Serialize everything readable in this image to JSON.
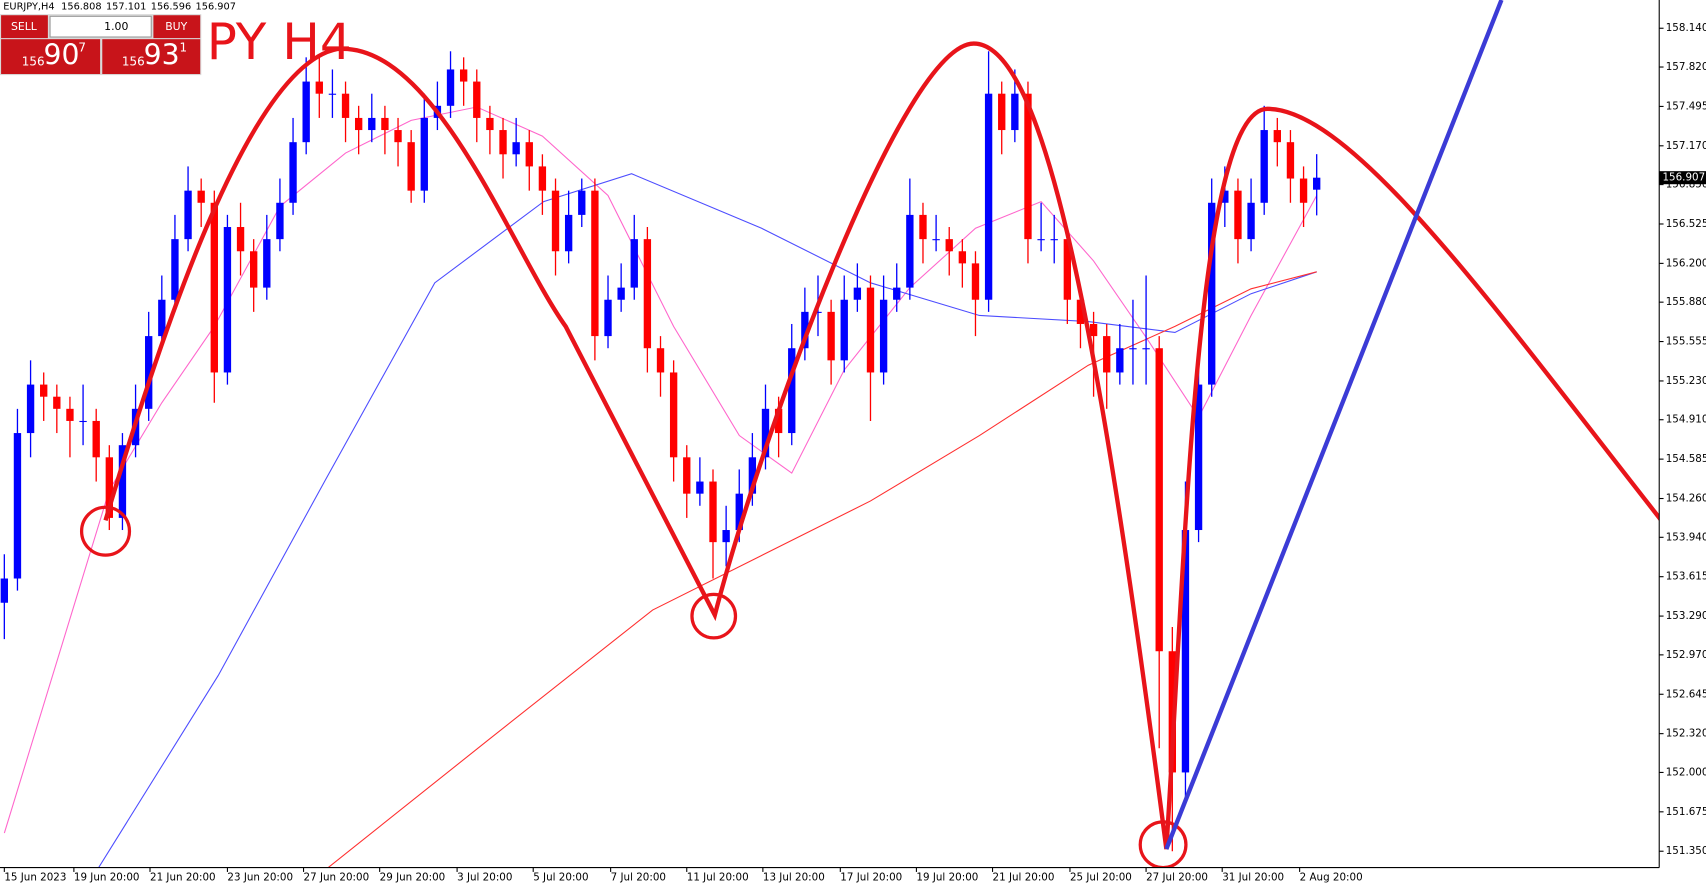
{
  "chart_data": {
    "type": "candlestick",
    "title": "EURJPY,H4",
    "header_values": [
      156.808,
      157.101,
      156.596,
      156.907
    ],
    "overlay_text": "PY H4",
    "trade_panel": {
      "sell": "SELL",
      "buy": "BUY",
      "lot": "1.00",
      "bid": [
        "156",
        "90",
        "7"
      ],
      "ask": [
        "156",
        "93",
        "1"
      ]
    },
    "up_color": "#0000ff",
    "down_color": "#ff0000",
    "xlim": [
      -0.33,
      126.1
    ],
    "ylim": [
      151.215,
      158.373
    ],
    "current_price": 156.907,
    "xticks": [
      {
        "value": 0,
        "label": "15 Jun 2023"
      },
      {
        "value": 5.3,
        "label": "19 Jun 20:00"
      },
      {
        "value": 11.1,
        "label": "21 Jun 20:00"
      },
      {
        "value": 17.0,
        "label": "23 Jun 20:00"
      },
      {
        "value": 22.8,
        "label": "27 Jun 20:00"
      },
      {
        "value": 28.6,
        "label": "29 Jun 20:00"
      },
      {
        "value": 34.5,
        "label": "3 Jul 20:00"
      },
      {
        "value": 40.3,
        "label": "5 Jul 20:00"
      },
      {
        "value": 46.2,
        "label": "7 Jul 20:00"
      },
      {
        "value": 52.0,
        "label": "11 Jul 20:00"
      },
      {
        "value": 57.8,
        "label": "13 Jul 20:00"
      },
      {
        "value": 63.7,
        "label": "17 Jul 20:00"
      },
      {
        "value": 69.5,
        "label": "19 Jul 20:00"
      },
      {
        "value": 75.3,
        "label": "21 Jul 20:00"
      },
      {
        "value": 81.2,
        "label": "25 Jul 20:00"
      },
      {
        "value": 87.0,
        "label": "27 Jul 20:00"
      },
      {
        "value": 92.8,
        "label": "31 Jul 20:00"
      },
      {
        "value": 98.7,
        "label": "2 Aug 20:00"
      }
    ],
    "yticks": [
      {
        "value": 158.14,
        "label": "158.140"
      },
      {
        "value": 157.82,
        "label": "157.820"
      },
      157.495,
      {
        "value": 157.17,
        "label": "157.170"
      },
      {
        "value": 156.85,
        "label": "156.850"
      },
      156.525,
      {
        "value": 156.2,
        "label": "156.200"
      },
      {
        "value": 155.88,
        "label": "155.880"
      },
      155.555,
      {
        "value": 155.23,
        "label": "155.230"
      },
      {
        "value": 154.91,
        "label": "154.910"
      },
      154.585,
      {
        "value": 154.26,
        "label": "154.260"
      },
      {
        "value": 153.94,
        "label": "153.940"
      },
      153.615,
      {
        "value": 153.29,
        "label": "153.290"
      },
      {
        "value": 152.97,
        "label": "152.970"
      },
      152.645,
      {
        "value": 152.32,
        "label": "152.320"
      },
      {
        "value": 152.0,
        "label": "152.000"
      },
      151.675,
      {
        "value": 151.35,
        "label": "151.350"
      }
    ],
    "ohlc": [
      [
        153.4,
        153.8,
        153.1,
        153.6
      ],
      [
        153.6,
        155.0,
        153.5,
        154.8
      ],
      [
        154.8,
        155.4,
        154.6,
        155.2
      ],
      [
        155.2,
        155.3,
        154.9,
        155.1
      ],
      [
        155.1,
        155.2,
        154.8,
        155.0
      ],
      [
        155.0,
        155.1,
        154.6,
        154.9
      ],
      [
        154.9,
        155.2,
        154.7,
        154.9
      ],
      [
        154.9,
        155.0,
        154.4,
        154.6
      ],
      [
        154.6,
        154.7,
        154.0,
        154.1
      ],
      [
        154.1,
        154.8,
        154.0,
        154.7
      ],
      [
        154.7,
        155.2,
        154.6,
        155.0
      ],
      [
        155.0,
        155.8,
        154.9,
        155.6
      ],
      [
        155.6,
        156.1,
        155.5,
        155.9
      ],
      [
        155.9,
        156.6,
        155.8,
        156.4
      ],
      [
        156.4,
        157.0,
        156.3,
        156.8
      ],
      [
        156.8,
        156.9,
        156.5,
        156.7
      ],
      [
        156.7,
        156.8,
        155.05,
        155.3
      ],
      [
        155.3,
        156.6,
        155.2,
        156.5
      ],
      [
        156.5,
        156.7,
        156.1,
        156.3
      ],
      [
        156.3,
        156.4,
        155.8,
        156.0
      ],
      [
        156.0,
        156.6,
        155.9,
        156.4
      ],
      [
        156.4,
        156.9,
        156.3,
        156.7
      ],
      [
        156.7,
        157.4,
        156.6,
        157.2
      ],
      [
        157.2,
        157.9,
        157.1,
        157.7
      ],
      [
        157.7,
        157.9,
        157.4,
        157.6
      ],
      [
        157.6,
        157.8,
        157.4,
        157.6
      ],
      [
        157.6,
        157.7,
        157.2,
        157.4
      ],
      [
        157.4,
        157.5,
        157.1,
        157.3
      ],
      [
        157.3,
        157.6,
        157.2,
        157.4
      ],
      [
        157.4,
        157.5,
        157.1,
        157.3
      ],
      [
        157.3,
        157.4,
        157.0,
        157.2
      ],
      [
        157.2,
        157.3,
        156.7,
        156.8
      ],
      [
        156.8,
        157.6,
        156.7,
        157.4
      ],
      [
        157.4,
        157.7,
        157.3,
        157.5
      ],
      [
        157.5,
        157.95,
        157.4,
        157.8
      ],
      [
        157.8,
        157.9,
        157.5,
        157.7
      ],
      [
        157.7,
        157.8,
        157.2,
        157.4
      ],
      [
        157.4,
        157.5,
        157.1,
        157.3
      ],
      [
        157.3,
        157.4,
        156.9,
        157.1
      ],
      [
        157.1,
        157.4,
        157.0,
        157.2
      ],
      [
        157.2,
        157.3,
        156.8,
        157.0
      ],
      [
        157.0,
        157.1,
        156.6,
        156.8
      ],
      [
        156.8,
        156.9,
        156.1,
        156.3
      ],
      [
        156.3,
        156.8,
        156.2,
        156.6
      ],
      [
        156.6,
        156.9,
        156.5,
        156.8
      ],
      [
        156.8,
        156.9,
        155.4,
        155.6
      ],
      [
        155.6,
        156.1,
        155.5,
        155.9
      ],
      [
        155.9,
        156.2,
        155.8,
        156.0
      ],
      [
        156.0,
        156.6,
        155.9,
        156.4
      ],
      [
        156.4,
        156.5,
        155.3,
        155.5
      ],
      [
        155.5,
        155.6,
        155.1,
        155.3
      ],
      [
        155.3,
        155.4,
        154.4,
        154.6
      ],
      [
        154.6,
        154.7,
        154.1,
        154.3
      ],
      [
        154.3,
        154.6,
        154.2,
        154.4
      ],
      [
        154.4,
        154.5,
        153.6,
        153.9
      ],
      [
        153.9,
        154.2,
        153.7,
        154.0
      ],
      [
        154.0,
        154.5,
        153.9,
        154.3
      ],
      [
        154.3,
        154.8,
        154.2,
        154.6
      ],
      [
        154.6,
        155.2,
        154.5,
        155.0
      ],
      [
        155.0,
        155.1,
        154.6,
        154.8
      ],
      [
        154.8,
        155.7,
        154.7,
        155.5
      ],
      [
        155.5,
        156.0,
        155.4,
        155.8
      ],
      [
        155.8,
        156.1,
        155.6,
        155.8
      ],
      [
        155.8,
        155.9,
        155.2,
        155.4
      ],
      [
        155.4,
        156.1,
        155.3,
        155.9
      ],
      [
        155.9,
        156.2,
        155.8,
        156.0
      ],
      [
        156.0,
        156.1,
        154.9,
        155.3
      ],
      [
        155.3,
        156.1,
        155.2,
        155.9
      ],
      [
        155.9,
        156.2,
        155.8,
        156.0
      ],
      [
        156.0,
        156.9,
        155.9,
        156.6
      ],
      [
        156.6,
        156.7,
        156.2,
        156.4
      ],
      [
        156.4,
        156.6,
        156.3,
        156.4
      ],
      [
        156.4,
        156.5,
        156.1,
        156.3
      ],
      [
        156.3,
        156.4,
        156.0,
        156.2
      ],
      [
        156.2,
        156.3,
        155.6,
        155.9
      ],
      [
        155.9,
        157.95,
        155.8,
        157.6
      ],
      [
        157.6,
        157.7,
        157.1,
        157.3
      ],
      [
        157.3,
        157.8,
        157.2,
        157.6
      ],
      [
        157.6,
        157.7,
        156.2,
        156.4
      ],
      [
        156.4,
        156.7,
        156.3,
        156.4
      ],
      [
        156.4,
        156.6,
        156.2,
        156.4
      ],
      [
        156.4,
        156.5,
        155.7,
        155.9
      ],
      [
        155.9,
        156.0,
        155.5,
        155.7
      ],
      [
        155.7,
        155.8,
        155.1,
        155.6
      ],
      [
        155.6,
        155.7,
        155.0,
        155.3
      ],
      [
        155.3,
        155.7,
        155.2,
        155.5
      ],
      [
        155.5,
        155.9,
        155.2,
        155.5
      ],
      [
        155.5,
        156.1,
        155.2,
        155.5
      ],
      [
        155.5,
        155.6,
        152.2,
        153.0
      ],
      [
        153.0,
        153.2,
        151.35,
        152.0
      ],
      [
        152.0,
        154.4,
        151.8,
        154.0
      ],
      [
        154.0,
        155.4,
        153.9,
        155.2
      ],
      [
        155.2,
        156.9,
        155.1,
        156.7
      ],
      [
        156.7,
        157.0,
        156.5,
        156.8
      ],
      [
        156.8,
        156.9,
        156.2,
        156.4
      ],
      [
        156.4,
        156.9,
        156.3,
        156.7
      ],
      [
        156.7,
        157.5,
        156.6,
        157.3
      ],
      [
        157.3,
        157.4,
        157.0,
        157.2
      ],
      [
        157.2,
        157.3,
        156.7,
        156.9
      ],
      [
        156.9,
        157.0,
        156.5,
        156.7
      ],
      [
        156.808,
        157.101,
        156.596,
        156.907
      ]
    ],
    "lines": [
      {
        "color": "#ff66cc",
        "x": [
          0,
          8,
          12,
          16,
          21,
          26,
          31,
          36,
          41,
          46,
          51,
          56,
          60,
          64,
          69,
          74,
          79,
          83,
          87,
          91,
          95,
          100
        ],
        "values": [
          151.5,
          154.33,
          155.05,
          155.68,
          156.67,
          157.11,
          157.38,
          157.49,
          157.25,
          156.76,
          155.68,
          154.78,
          154.47,
          155.32,
          156.0,
          156.49,
          156.71,
          156.22,
          155.59,
          154.93,
          155.77,
          156.76
        ]
      },
      {
        "color": "#4d4dff",
        "x": [
          7.1,
          16.3,
          24.5,
          32.8,
          41.1,
          47.8,
          57.7,
          66.0,
          74.3,
          82.6,
          89.2,
          95.0,
          100
        ],
        "values": [
          151.2,
          152.8,
          154.42,
          156.04,
          156.71,
          156.94,
          156.49,
          156.04,
          155.77,
          155.72,
          155.63,
          155.95,
          156.13
        ]
      },
      {
        "color": "#ff3030",
        "x": [
          24.5,
          36.9,
          49.4,
          57.7,
          66.0,
          74.3,
          82.6,
          89.2,
          95.0,
          100
        ],
        "values": [
          151.2,
          152.27,
          153.34,
          153.79,
          154.24,
          154.78,
          155.36,
          155.68,
          155.99,
          156.13
        ]
      }
    ]
  }
}
